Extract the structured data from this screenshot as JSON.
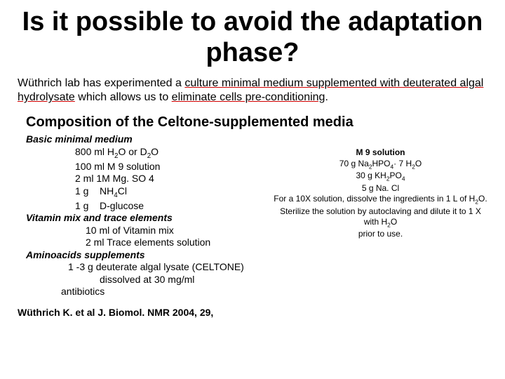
{
  "title": "Is it possible to avoid the adaptation phase?",
  "intro": {
    "seg1": "Wüthrich lab has experimented a ",
    "seg2": "culture minimal medium supplemented with deuterated algal hydrolysate",
    "seg3": " which allows us to ",
    "seg4": "eliminate cells pre-conditioning",
    "seg5": "."
  },
  "sectionHeading": "Composition of the Celtone-supplemented media",
  "left": {
    "sub1": "Basic minimal medium",
    "l1a": "800 ml H",
    "l1b": "O or D",
    "l1c": "O",
    "l2": "100 ml M 9 solution",
    "l3": "2 ml 1M Mg. SO 4",
    "l4a": "1 g    NH",
    "l4b": "Cl",
    "l5": "1 g    D-glucose",
    "sub2": "Vitamin mix and trace elements",
    "l6": "10 ml of Vitamin mix",
    "l7": "2 ml Trace elements solution",
    "sub3": "Aminoacids supplements",
    "l8": "1 -3 g deuterate algal lysate (CELTONE)",
    "l9": "dissolved at 30 mg/ml",
    "l10": "antibiotics"
  },
  "right": {
    "title": "M 9 solution",
    "r1a": "70 g Na",
    "r1b": "HPO",
    "r1c": "· 7 H",
    "r1d": "O",
    "r2a": "30 g KH",
    "r2b": "PO",
    "r3": "5 g Na. Cl",
    "r4a": "For a 10X solution, dissolve the ingredients in 1 L of H",
    "r4b": "O.",
    "r5a": "Sterilize the solution by autoclaving and dilute it to 1 X with H",
    "r5b": "O",
    "r6": "prior to use."
  },
  "reference": "Wüthrich K. et al J. Biomol. NMR 2004, 29,",
  "colors": {
    "underline": "#d00000"
  },
  "fonts": {
    "family": "Comic Sans MS",
    "titleSize": 38,
    "introSize": 16,
    "headingSize": 20,
    "bodySize": 14,
    "rightSize": 12
  }
}
